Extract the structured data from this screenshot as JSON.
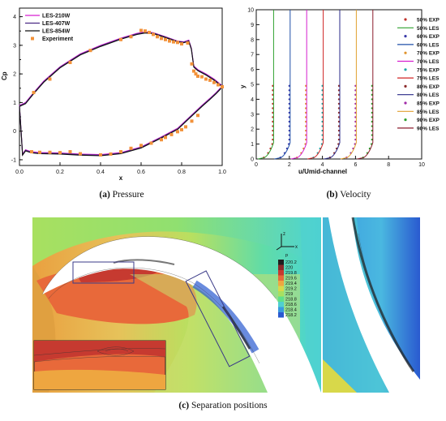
{
  "captions": {
    "a": {
      "label": "(a)",
      "text": "Pressure"
    },
    "b": {
      "label": "(b)",
      "text": "Velocity"
    },
    "c": {
      "label": "(c)",
      "text": "Separation positions"
    }
  },
  "chart_data": [
    {
      "id": "pressure",
      "type": "line",
      "xlabel": "x",
      "ylabel": "Cp",
      "xlim": [
        0,
        1
      ],
      "ylim": [
        -1.2,
        4.3
      ],
      "xticks": [
        0,
        0.2,
        0.4,
        0.6,
        0.8,
        1
      ],
      "xtick_labels": [
        "0.0",
        "0.2",
        "0.4",
        "0.6",
        "0.8",
        "1.0"
      ],
      "yticks": [
        -1,
        0,
        1,
        2,
        3,
        4
      ],
      "yminor_step": 0.5,
      "grid": false,
      "legend_position": "top-left",
      "series": [
        {
          "name": "LES-210W",
          "color": "#d61fd0",
          "kind": "line",
          "suction": [
            [
              0,
              0.9
            ],
            [
              0.03,
              1.0
            ],
            [
              0.07,
              1.35
            ],
            [
              0.12,
              1.75
            ],
            [
              0.2,
              2.25
            ],
            [
              0.3,
              2.7
            ],
            [
              0.4,
              3.0
            ],
            [
              0.5,
              3.25
            ],
            [
              0.58,
              3.42
            ],
            [
              0.62,
              3.47
            ],
            [
              0.66,
              3.44
            ],
            [
              0.72,
              3.3
            ],
            [
              0.78,
              3.15
            ],
            [
              0.81,
              3.12
            ],
            [
              0.835,
              3.18
            ],
            [
              0.848,
              2.9
            ],
            [
              0.86,
              2.28
            ],
            [
              0.88,
              2.15
            ],
            [
              0.92,
              2.0
            ],
            [
              0.96,
              1.82
            ],
            [
              0.99,
              1.65
            ],
            [
              1.0,
              1.58
            ]
          ],
          "pressure": [
            [
              0,
              0.9
            ],
            [
              0.01,
              -0.2
            ],
            [
              0.015,
              -0.8
            ],
            [
              0.03,
              -0.65
            ],
            [
              0.06,
              -0.72
            ],
            [
              0.1,
              -0.75
            ],
            [
              0.2,
              -0.76
            ],
            [
              0.3,
              -0.8
            ],
            [
              0.4,
              -0.82
            ],
            [
              0.5,
              -0.75
            ],
            [
              0.6,
              -0.55
            ],
            [
              0.7,
              -0.2
            ],
            [
              0.78,
              0.1
            ],
            [
              0.84,
              0.5
            ],
            [
              0.9,
              0.9
            ],
            [
              0.94,
              1.15
            ],
            [
              0.97,
              1.35
            ],
            [
              0.99,
              1.5
            ],
            [
              1.0,
              1.58
            ]
          ]
        },
        {
          "name": "LES-407W",
          "color": "#4b2a84",
          "kind": "line",
          "suction": [
            [
              0,
              0.88
            ],
            [
              0.03,
              0.98
            ],
            [
              0.07,
              1.33
            ],
            [
              0.12,
              1.73
            ],
            [
              0.2,
              2.23
            ],
            [
              0.3,
              2.68
            ],
            [
              0.4,
              2.98
            ],
            [
              0.5,
              3.23
            ],
            [
              0.58,
              3.4
            ],
            [
              0.62,
              3.45
            ],
            [
              0.66,
              3.43
            ],
            [
              0.72,
              3.29
            ],
            [
              0.78,
              3.14
            ],
            [
              0.81,
              3.11
            ],
            [
              0.835,
              3.16
            ],
            [
              0.848,
              2.88
            ],
            [
              0.86,
              2.26
            ],
            [
              0.88,
              2.13
            ],
            [
              0.92,
              1.98
            ],
            [
              0.96,
              1.8
            ],
            [
              0.99,
              1.63
            ],
            [
              1.0,
              1.56
            ]
          ],
          "pressure": [
            [
              0,
              0.88
            ],
            [
              0.01,
              -0.22
            ],
            [
              0.015,
              -0.82
            ],
            [
              0.03,
              -0.67
            ],
            [
              0.06,
              -0.74
            ],
            [
              0.1,
              -0.77
            ],
            [
              0.2,
              -0.78
            ],
            [
              0.3,
              -0.82
            ],
            [
              0.4,
              -0.84
            ],
            [
              0.5,
              -0.77
            ],
            [
              0.6,
              -0.57
            ],
            [
              0.7,
              -0.22
            ],
            [
              0.78,
              0.08
            ],
            [
              0.84,
              0.48
            ],
            [
              0.9,
              0.88
            ],
            [
              0.94,
              1.13
            ],
            [
              0.97,
              1.33
            ],
            [
              0.99,
              1.48
            ],
            [
              1.0,
              1.56
            ]
          ]
        },
        {
          "name": "LES-854W",
          "color": "#111111",
          "kind": "line",
          "suction": [
            [
              0,
              0.86
            ],
            [
              0.03,
              0.96
            ],
            [
              0.07,
              1.31
            ],
            [
              0.12,
              1.71
            ],
            [
              0.2,
              2.21
            ],
            [
              0.3,
              2.66
            ],
            [
              0.4,
              2.96
            ],
            [
              0.5,
              3.21
            ],
            [
              0.58,
              3.38
            ],
            [
              0.62,
              3.43
            ],
            [
              0.66,
              3.41
            ],
            [
              0.72,
              3.27
            ],
            [
              0.78,
              3.12
            ],
            [
              0.81,
              3.09
            ],
            [
              0.835,
              3.14
            ],
            [
              0.848,
              2.86
            ],
            [
              0.86,
              2.24
            ],
            [
              0.88,
              2.11
            ],
            [
              0.92,
              1.96
            ],
            [
              0.96,
              1.78
            ],
            [
              0.99,
              1.61
            ],
            [
              1.0,
              1.54
            ]
          ],
          "pressure": [
            [
              0,
              0.86
            ],
            [
              0.01,
              -0.24
            ],
            [
              0.015,
              -0.84
            ],
            [
              0.03,
              -0.69
            ],
            [
              0.06,
              -0.76
            ],
            [
              0.1,
              -0.79
            ],
            [
              0.2,
              -0.8
            ],
            [
              0.3,
              -0.84
            ],
            [
              0.4,
              -0.86
            ],
            [
              0.5,
              -0.79
            ],
            [
              0.6,
              -0.59
            ],
            [
              0.7,
              -0.24
            ],
            [
              0.78,
              0.06
            ],
            [
              0.84,
              0.46
            ],
            [
              0.9,
              0.86
            ],
            [
              0.94,
              1.11
            ],
            [
              0.97,
              1.31
            ],
            [
              0.99,
              1.46
            ],
            [
              1.0,
              1.54
            ]
          ]
        },
        {
          "name": "Experiment",
          "color": "#f2923a",
          "kind": "scatter",
          "points": [
            [
              0.07,
              1.35
            ],
            [
              0.15,
              1.82
            ],
            [
              0.25,
              2.4
            ],
            [
              0.35,
              2.82
            ],
            [
              0.5,
              3.2
            ],
            [
              0.55,
              3.3
            ],
            [
              0.6,
              3.52
            ],
            [
              0.62,
              3.5
            ],
            [
              0.64,
              3.45
            ],
            [
              0.66,
              3.38
            ],
            [
              0.68,
              3.3
            ],
            [
              0.7,
              3.24
            ],
            [
              0.72,
              3.2
            ],
            [
              0.74,
              3.15
            ],
            [
              0.76,
              3.12
            ],
            [
              0.78,
              3.1
            ],
            [
              0.8,
              3.05
            ],
            [
              0.83,
              3.08
            ],
            [
              0.85,
              2.35
            ],
            [
              0.86,
              2.1
            ],
            [
              0.87,
              2.0
            ],
            [
              0.88,
              1.92
            ],
            [
              0.9,
              1.9
            ],
            [
              0.92,
              1.82
            ],
            [
              0.94,
              1.78
            ],
            [
              0.96,
              1.7
            ],
            [
              0.98,
              1.62
            ],
            [
              1.0,
              1.55
            ],
            [
              0.06,
              -0.72
            ],
            [
              0.1,
              -0.74
            ],
            [
              0.15,
              -0.74
            ],
            [
              0.2,
              -0.75
            ],
            [
              0.25,
              -0.72
            ],
            [
              0.3,
              -0.79
            ],
            [
              0.4,
              -0.83
            ],
            [
              0.45,
              -0.8
            ],
            [
              0.5,
              -0.72
            ],
            [
              0.55,
              -0.6
            ],
            [
              0.6,
              -0.5
            ],
            [
              0.65,
              -0.42
            ],
            [
              0.7,
              -0.3
            ],
            [
              0.72,
              -0.22
            ],
            [
              0.75,
              -0.12
            ],
            [
              0.78,
              -0.02
            ],
            [
              0.8,
              0.05
            ],
            [
              0.82,
              0.15
            ],
            [
              0.85,
              0.35
            ],
            [
              0.88,
              0.55
            ]
          ]
        }
      ]
    },
    {
      "id": "velocity",
      "type": "line",
      "xlabel": "u/Umid-channel",
      "ylabel": "y",
      "xlim": [
        0,
        10
      ],
      "ylim": [
        0,
        10
      ],
      "xticks": [
        0,
        2,
        4,
        6,
        8,
        10
      ],
      "yticks": [
        0,
        1,
        2,
        3,
        4,
        5,
        6,
        7,
        8,
        9,
        10
      ],
      "grid": false,
      "legend_position": "right",
      "offset_note": "each station's profile is shifted by its x position",
      "series": [
        {
          "name": "50% EXP",
          "color": "#c0312b",
          "kind": "scatter",
          "station": 1.0
        },
        {
          "name": "50% LES",
          "color": "#2ea02e",
          "kind": "line",
          "station": 1.0
        },
        {
          "name": "60% EXP",
          "color": "#3a3aa8",
          "kind": "scatter",
          "station": 2.0
        },
        {
          "name": "60% LES",
          "color": "#1f4fa8",
          "kind": "line",
          "station": 2.0
        },
        {
          "name": "70% EXP",
          "color": "#e0942e",
          "kind": "scatter",
          "station": 3.0
        },
        {
          "name": "70% LES",
          "color": "#d61fd0",
          "kind": "line",
          "station": 3.0
        },
        {
          "name": "75% EXP",
          "color": "#20a8a8",
          "kind": "scatter",
          "station": 4.0
        },
        {
          "name": "75% LES",
          "color": "#d02424",
          "kind": "line",
          "station": 4.0
        },
        {
          "name": "80% EXP",
          "color": "#8b2a2a",
          "kind": "scatter",
          "station": 5.0
        },
        {
          "name": "80% LES",
          "color": "#2a2a88",
          "kind": "line",
          "station": 5.0
        },
        {
          "name": "85% EXP",
          "color": "#a02aa8",
          "kind": "scatter",
          "station": 6.0
        },
        {
          "name": "85% LES",
          "color": "#e0a030",
          "kind": "line",
          "station": 6.0
        },
        {
          "name": "90% EXP",
          "color": "#2ea02e",
          "kind": "scatter",
          "station": 7.0
        },
        {
          "name": "90% LES",
          "color": "#8b1c2c",
          "kind": "line",
          "station": 7.0
        }
      ]
    },
    {
      "id": "separation",
      "type": "heatmap",
      "legend_title": "p",
      "axis_labels": {
        "z": "z",
        "x": "x"
      },
      "levels": [
        "220.2",
        "220",
        "219.8",
        "219.6",
        "219.4",
        "219.2",
        "219",
        "218.8",
        "218.6",
        "218.4",
        "218.2"
      ],
      "level_colors": [
        "#1e1e1e",
        "#8a2a2a",
        "#c63a30",
        "#e8693a",
        "#eea640",
        "#d8d84a",
        "#a8e060",
        "#5ee08a",
        "#50d0d0",
        "#3a9ae0",
        "#2a5ad0"
      ]
    }
  ]
}
